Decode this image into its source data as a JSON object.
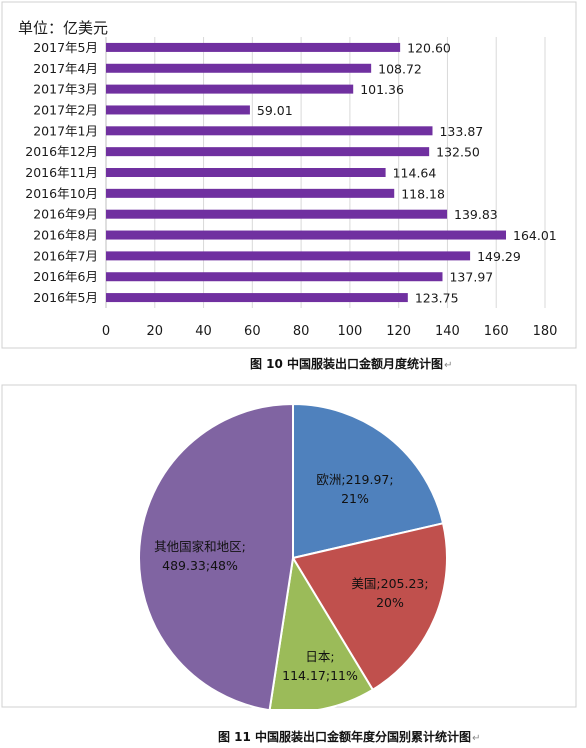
{
  "chart_data": [
    {
      "type": "bar",
      "orientation": "horizontal",
      "unit_label": "单位：亿美元",
      "categories": [
        "2017年5月",
        "2017年4月",
        "2017年3月",
        "2017年2月",
        "2017年1月",
        "2016年12月",
        "2016年11月",
        "2016年10月",
        "2016年9月",
        "2016年8月",
        "2016年7月",
        "2016年6月",
        "2016年5月"
      ],
      "values": [
        120.6,
        108.72,
        101.36,
        59.01,
        133.87,
        132.5,
        114.64,
        118.18,
        139.83,
        164.01,
        149.29,
        137.97,
        123.75
      ],
      "value_labels": [
        "120.60",
        "108.72",
        "101.36",
        "59.01",
        "133.87",
        "132.50",
        "114.64",
        "118.18",
        "139.83",
        "164.01",
        "149.29",
        "137.97",
        "123.75"
      ],
      "xlim": [
        0,
        180
      ],
      "xticks": [
        "0",
        "20",
        "40",
        "60",
        "80",
        "100",
        "120",
        "140",
        "160",
        "180"
      ],
      "grid": true,
      "bar_color": "#7030A0",
      "caption": "图 10 中国服装出口金额月度统计图",
      "caption_mark": "↵"
    },
    {
      "type": "pie",
      "slices": [
        {
          "name": "欧洲",
          "value": 219.97,
          "percent": "21%",
          "label_line1": "欧洲;219.97;",
          "label_line2": "21%",
          "color": "#4F81BD"
        },
        {
          "name": "美国",
          "value": 205.23,
          "percent": "20%",
          "label_line1": "美国;205.23;",
          "label_line2": "20%",
          "color": "#C0504D"
        },
        {
          "name": "日本",
          "value": 114.17,
          "percent": "11%",
          "label_line1": "日本;",
          "label_line2": "114.17;11%",
          "color": "#9BBB59"
        },
        {
          "name": "其他国家和地区",
          "value": 489.33,
          "percent": "48%",
          "label_line1": "其他国家和地区;",
          "label_line2": "489.33;48%",
          "color": "#8064A2"
        }
      ],
      "caption": "图 11 中国服装出口金额年度分国别累计统计图",
      "caption_mark": "↵"
    }
  ]
}
